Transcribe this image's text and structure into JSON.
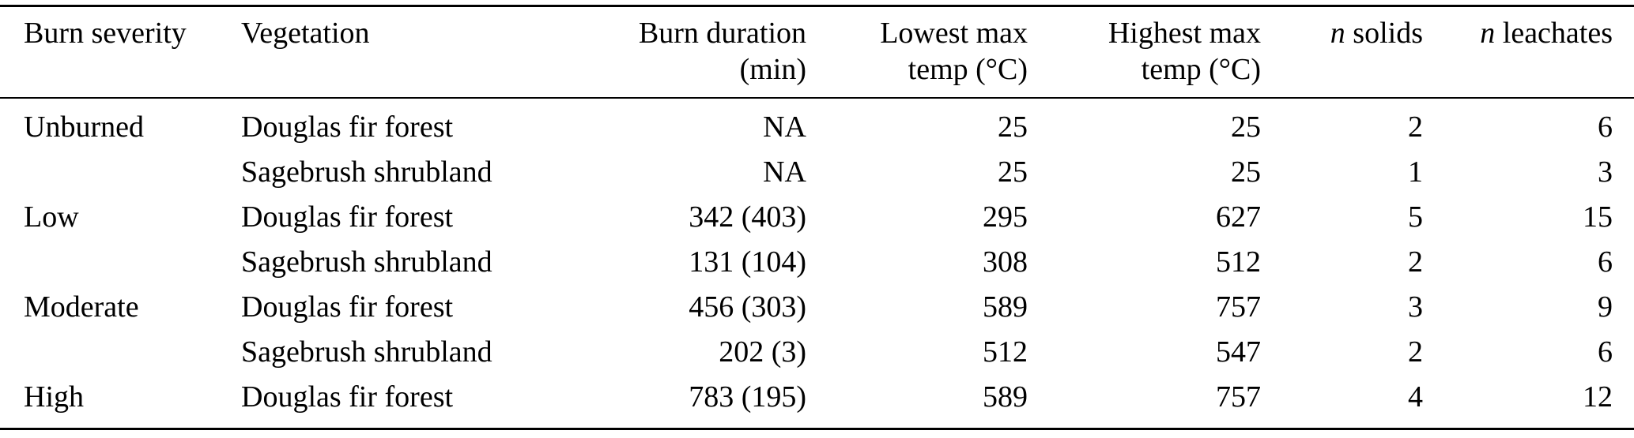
{
  "page": {
    "background": "#ffffff",
    "text_color": "#000000"
  },
  "table": {
    "headers": [
      {
        "line1": "Burn severity",
        "line2": ""
      },
      {
        "line1": "Vegetation",
        "line2": ""
      },
      {
        "line1": "Burn duration",
        "line2": "(min)"
      },
      {
        "line1": "Lowest max",
        "line2": "temp (°C)"
      },
      {
        "line1": "Highest max",
        "line2": "temp (°C)"
      },
      {
        "italic": "n",
        "line1": " solids",
        "line2": ""
      },
      {
        "italic": "n",
        "line1": " leachates",
        "line2": ""
      }
    ],
    "aligns": [
      "left",
      "left",
      "right",
      "right",
      "right",
      "right",
      "right"
    ],
    "rows": [
      [
        "Unburned",
        "Douglas fir forest",
        "NA",
        "25",
        "25",
        "2",
        "6"
      ],
      [
        "",
        "Sagebrush shrubland",
        "NA",
        "25",
        "25",
        "1",
        "3"
      ],
      [
        "Low",
        "Douglas fir forest",
        "342 (403)",
        "295",
        "627",
        "5",
        "15"
      ],
      [
        "",
        "Sagebrush shrubland",
        "131 (104)",
        "308",
        "512",
        "2",
        "6"
      ],
      [
        "Moderate",
        "Douglas fir forest",
        "456 (303)",
        "589",
        "757",
        "3",
        "9"
      ],
      [
        "",
        "Sagebrush shrubland",
        "202 (3)",
        "512",
        "547",
        "2",
        "6"
      ],
      [
        "High",
        "Douglas fir forest",
        "783 (195)",
        "589",
        "757",
        "4",
        "12"
      ]
    ]
  }
}
